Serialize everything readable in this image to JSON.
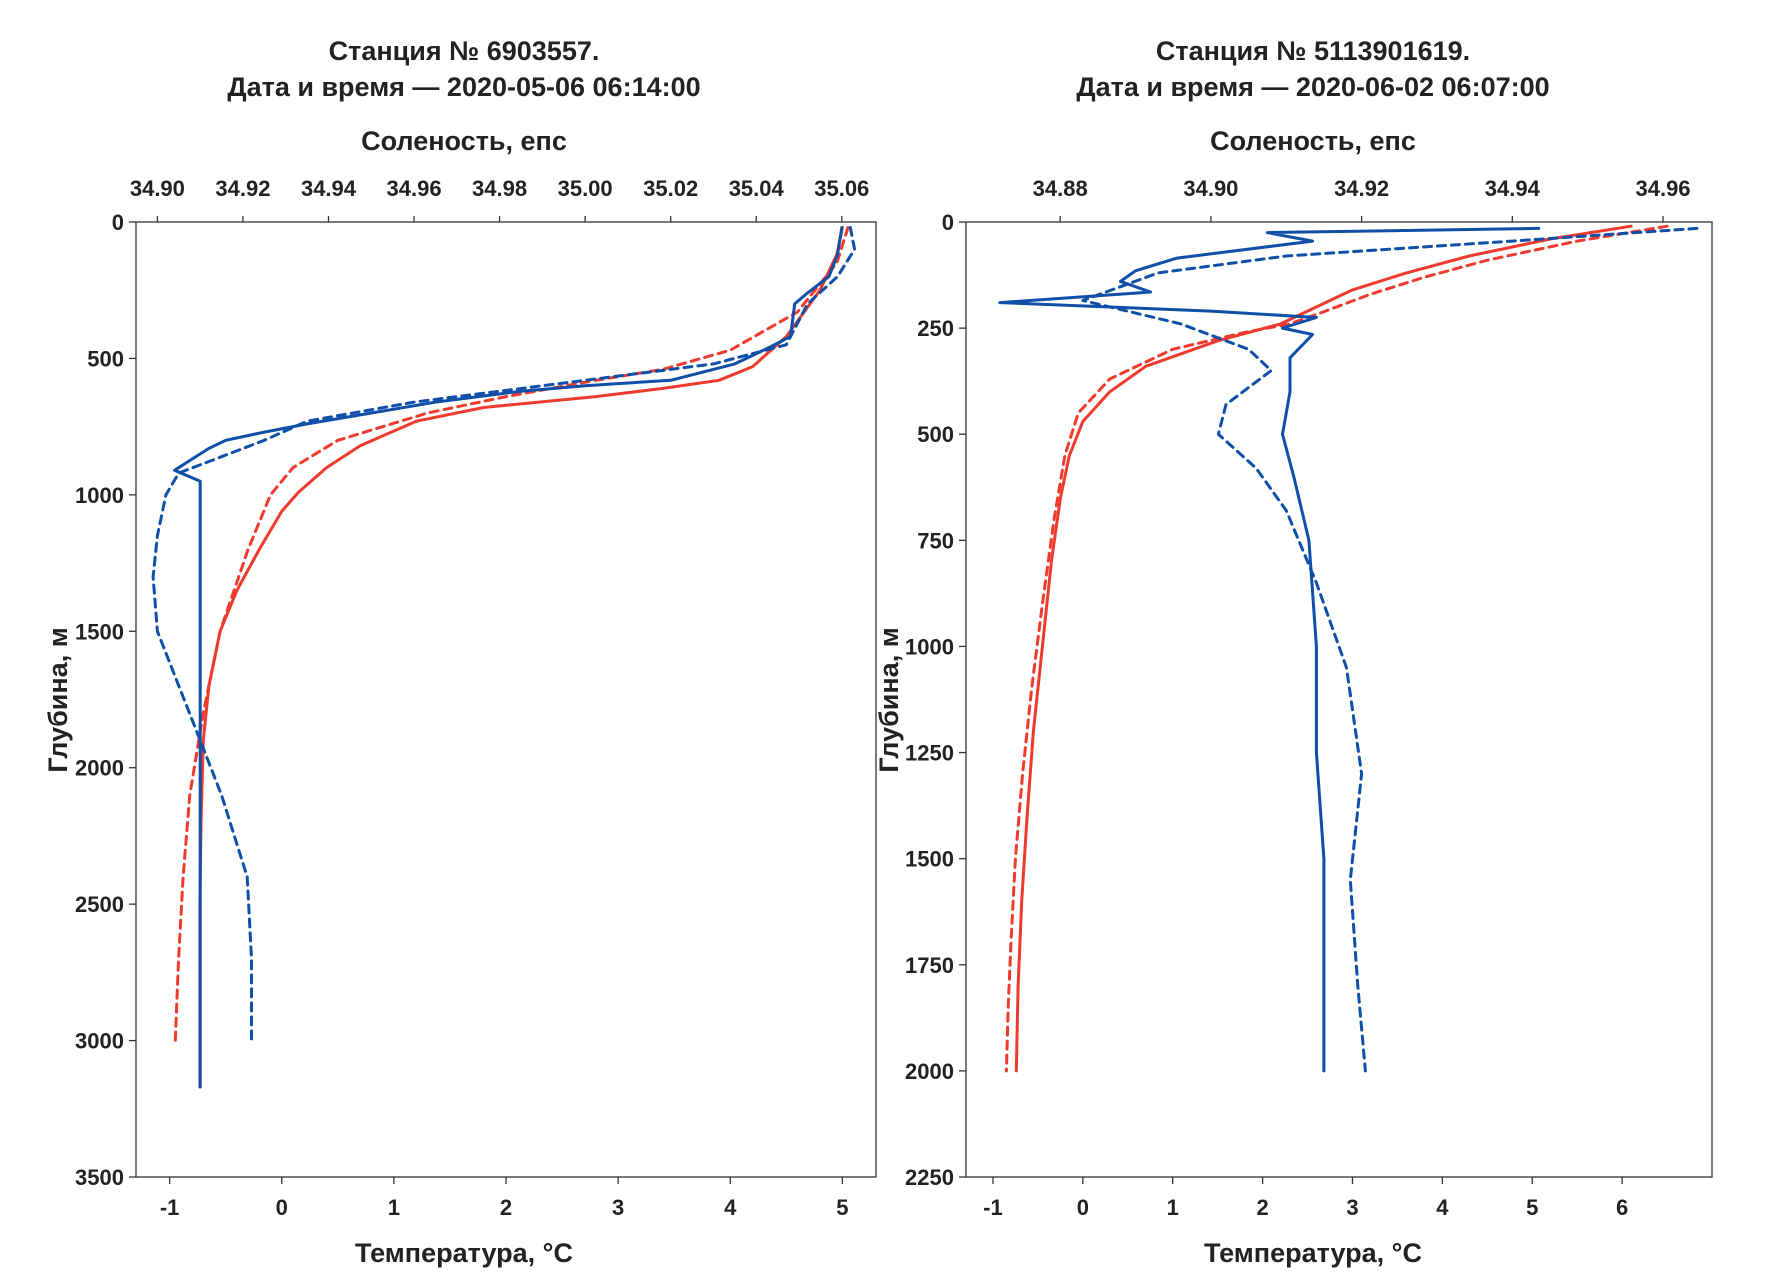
{
  "chart_data": [
    {
      "type": "line",
      "title": [
        "Станция № 6903557.",
        "Дата и время — 2020-05-06 06:14:00"
      ],
      "xlabel_top": "Соленость, епс",
      "xlabel_bottom": "Температура, °C",
      "ylabel": "Глубина, м",
      "ylim": [
        0,
        3500
      ],
      "y_inverted": true,
      "yticks": [
        0,
        500,
        1000,
        1500,
        2000,
        2500,
        3000,
        3500
      ],
      "temperature_axis": {
        "lim": [
          -1.3,
          5.3
        ],
        "ticks": [
          -1,
          0,
          1,
          2,
          3,
          4,
          5
        ]
      },
      "salinity_axis": {
        "lim": [
          34.895,
          35.068
        ],
        "ticks": [
          34.9,
          34.92,
          34.94,
          34.96,
          34.98,
          35.0,
          35.02,
          35.04,
          35.06
        ],
        "tick_labels": [
          "34.90",
          "34.92",
          "34.94",
          "34.96",
          "34.98",
          "35.00",
          "35.02",
          "35.04",
          "35.06"
        ]
      },
      "series": [
        {
          "style": "solid",
          "axis": "temperature",
          "color": "#ee3b2e",
          "points": [
            [
              5.0,
              20
            ],
            [
              4.95,
              120
            ],
            [
              4.8,
              250
            ],
            [
              4.5,
              420
            ],
            [
              4.2,
              530
            ],
            [
              3.9,
              580
            ],
            [
              3.4,
              610
            ],
            [
              2.8,
              640
            ],
            [
              1.8,
              680
            ],
            [
              1.2,
              730
            ],
            [
              0.7,
              820
            ],
            [
              0.4,
              900
            ],
            [
              0.15,
              990
            ],
            [
              0.0,
              1060
            ],
            [
              -0.2,
              1200
            ],
            [
              -0.4,
              1350
            ],
            [
              -0.55,
              1500
            ],
            [
              -0.65,
              1700
            ],
            [
              -0.7,
              1900
            ],
            [
              -0.72,
              2200
            ],
            [
              -0.73,
              2500
            ],
            [
              -0.73,
              2800
            ],
            [
              -0.73,
              3000
            ],
            [
              -0.73,
              3170
            ]
          ]
        },
        {
          "style": "dashed",
          "axis": "temperature",
          "color": "#ee3b2e",
          "points": [
            [
              5.05,
              20
            ],
            [
              4.95,
              150
            ],
            [
              4.6,
              330
            ],
            [
              4.0,
              470
            ],
            [
              3.4,
              540
            ],
            [
              2.8,
              580
            ],
            [
              2.0,
              640
            ],
            [
              1.3,
              700
            ],
            [
              0.5,
              800
            ],
            [
              0.1,
              900
            ],
            [
              -0.1,
              1000
            ],
            [
              -0.3,
              1200
            ],
            [
              -0.55,
              1500
            ],
            [
              -0.7,
              1800
            ],
            [
              -0.82,
              2100
            ],
            [
              -0.88,
              2400
            ],
            [
              -0.92,
              2700
            ],
            [
              -0.95,
              3010
            ]
          ]
        },
        {
          "style": "solid",
          "axis": "salinity",
          "color": "#0f4fa8",
          "points": [
            [
              35.06,
              20
            ],
            [
              35.059,
              120
            ],
            [
              35.057,
              200
            ],
            [
              35.052,
              260
            ],
            [
              35.049,
              300
            ],
            [
              35.048,
              420
            ],
            [
              35.043,
              460
            ],
            [
              35.035,
              520
            ],
            [
              35.02,
              580
            ],
            [
              35.0,
              600
            ],
            [
              34.985,
              620
            ],
            [
              34.965,
              660
            ],
            [
              34.95,
              700
            ],
            [
              34.935,
              740
            ],
            [
              34.925,
              770
            ],
            [
              34.916,
              800
            ],
            [
              34.912,
              830
            ],
            [
              34.908,
              870
            ],
            [
              34.904,
              910
            ],
            [
              34.91,
              950
            ],
            [
              34.91,
              1200
            ],
            [
              34.91,
              1500
            ],
            [
              34.91,
              2000
            ],
            [
              34.91,
              2500
            ],
            [
              34.91,
              2900
            ],
            [
              34.91,
              3170
            ]
          ]
        },
        {
          "style": "dashed",
          "axis": "salinity",
          "color": "#0f4fa8",
          "points": [
            [
              35.062,
              20
            ],
            [
              35.063,
              100
            ],
            [
              35.059,
              200
            ],
            [
              35.052,
              300
            ],
            [
              35.047,
              450
            ],
            [
              35.03,
              520
            ],
            [
              35.0,
              580
            ],
            [
              34.98,
              620
            ],
            [
              34.96,
              660
            ],
            [
              34.935,
              730
            ],
            [
              34.925,
              800
            ],
            [
              34.915,
              860
            ],
            [
              34.905,
              920
            ],
            [
              34.902,
              1000
            ],
            [
              34.9,
              1150
            ],
            [
              34.899,
              1300
            ],
            [
              34.9,
              1500
            ],
            [
              34.905,
              1700
            ],
            [
              34.91,
              1900
            ],
            [
              34.915,
              2100
            ],
            [
              34.921,
              2400
            ],
            [
              34.922,
              2700
            ],
            [
              34.922,
              3010
            ]
          ]
        }
      ]
    },
    {
      "type": "line",
      "title": [
        "Станция № 5113901619.",
        "Дата и время — 2020-06-02 06:07:00"
      ],
      "xlabel_top": "Соленость, епс",
      "xlabel_bottom": "Температура, °C",
      "ylabel": "Глубина, м",
      "ylim": [
        0,
        2250
      ],
      "y_inverted": true,
      "yticks": [
        0,
        250,
        500,
        750,
        1000,
        1250,
        1500,
        1750,
        2000,
        2250
      ],
      "temperature_axis": {
        "lim": [
          -1.3,
          7.0
        ],
        "ticks": [
          -1,
          0,
          1,
          2,
          3,
          4,
          5,
          6
        ]
      },
      "salinity_axis": {
        "lim": [
          34.8675,
          34.9665
        ],
        "ticks": [
          34.88,
          34.9,
          34.92,
          34.94,
          34.96
        ],
        "tick_labels": [
          "34.88",
          "34.90",
          "34.92",
          "34.94",
          "34.96"
        ]
      },
      "series": [
        {
          "style": "solid",
          "axis": "temperature",
          "color": "#ee3b2e",
          "points": [
            [
              6.1,
              10
            ],
            [
              5.2,
              40
            ],
            [
              4.3,
              80
            ],
            [
              3.6,
              120
            ],
            [
              3.0,
              160
            ],
            [
              2.6,
              200
            ],
            [
              2.2,
              240
            ],
            [
              1.5,
              280
            ],
            [
              0.7,
              340
            ],
            [
              0.3,
              400
            ],
            [
              0.0,
              470
            ],
            [
              -0.15,
              550
            ],
            [
              -0.25,
              650
            ],
            [
              -0.35,
              800
            ],
            [
              -0.45,
              1000
            ],
            [
              -0.55,
              1200
            ],
            [
              -0.62,
              1400
            ],
            [
              -0.68,
              1600
            ],
            [
              -0.72,
              1800
            ],
            [
              -0.74,
              2000
            ]
          ]
        },
        {
          "style": "dashed",
          "axis": "temperature",
          "color": "#ee3b2e",
          "points": [
            [
              6.5,
              10
            ],
            [
              5.5,
              45
            ],
            [
              4.5,
              90
            ],
            [
              3.8,
              130
            ],
            [
              3.2,
              170
            ],
            [
              2.7,
              210
            ],
            [
              2.3,
              240
            ],
            [
              1.8,
              260
            ],
            [
              1.0,
              300
            ],
            [
              0.3,
              370
            ],
            [
              -0.05,
              450
            ],
            [
              -0.2,
              550
            ],
            [
              -0.32,
              700
            ],
            [
              -0.45,
              900
            ],
            [
              -0.57,
              1100
            ],
            [
              -0.67,
              1300
            ],
            [
              -0.75,
              1500
            ],
            [
              -0.8,
              1700
            ],
            [
              -0.83,
              1850
            ],
            [
              -0.85,
              2000
            ]
          ]
        },
        {
          "style": "solid",
          "axis": "salinity",
          "color": "#0f4fa8",
          "points": [
            [
              34.9435,
              15
            ],
            [
              34.9075,
              25
            ],
            [
              34.9135,
              45
            ],
            [
              34.8955,
              85
            ],
            [
              34.89,
              115
            ],
            [
              34.888,
              140
            ],
            [
              34.892,
              165
            ],
            [
              34.872,
              190
            ],
            [
              34.9,
              210
            ],
            [
              34.914,
              225
            ],
            [
              34.9095,
              250
            ],
            [
              34.9135,
              265
            ],
            [
              34.9105,
              320
            ],
            [
              34.9105,
              400
            ],
            [
              34.9095,
              500
            ],
            [
              34.911,
              600
            ],
            [
              34.913,
              750
            ],
            [
              34.914,
              1000
            ],
            [
              34.914,
              1250
            ],
            [
              34.915,
              1500
            ],
            [
              34.915,
              2000
            ]
          ]
        },
        {
          "style": "dashed",
          "axis": "salinity",
          "color": "#0f4fa8",
          "points": [
            [
              34.9645,
              15
            ],
            [
              34.94,
              45
            ],
            [
              34.91,
              80
            ],
            [
              34.893,
              120
            ],
            [
              34.883,
              185
            ],
            [
              34.896,
              240
            ],
            [
              34.905,
              300
            ],
            [
              34.908,
              350
            ],
            [
              34.902,
              430
            ],
            [
              34.901,
              500
            ],
            [
              34.906,
              580
            ],
            [
              34.91,
              680
            ],
            [
              34.914,
              850
            ],
            [
              34.918,
              1050
            ],
            [
              34.92,
              1300
            ],
            [
              34.9185,
              1550
            ],
            [
              34.9195,
              1800
            ],
            [
              34.9205,
              2000
            ]
          ]
        }
      ]
    }
  ]
}
